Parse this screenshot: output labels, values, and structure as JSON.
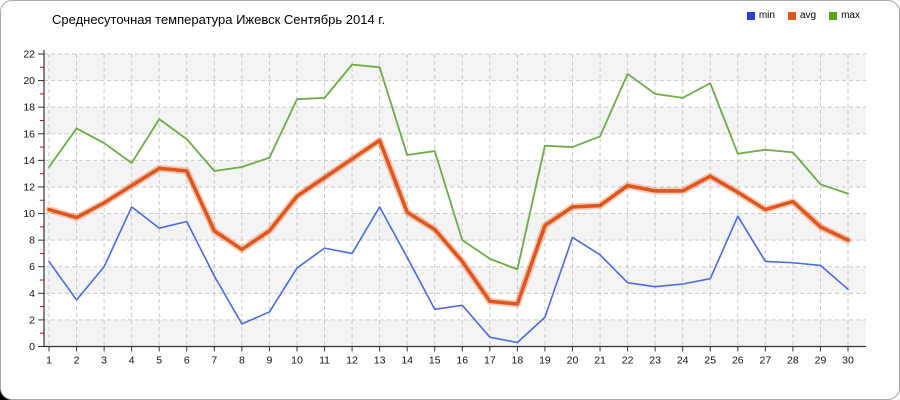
{
  "title": "Среднесуточная температура Ижевск  Сентябрь 2014 г.",
  "colors": {
    "grid": "#c9c9c9",
    "axis": "#333333",
    "minor_tick": "#d40000",
    "band": "#f4f4f4",
    "frame_border": "#a9a9a9",
    "label": "#111111"
  },
  "chart_data": {
    "type": "line",
    "title": "Среднесуточная температура Ижевск  Сентябрь 2014 г.",
    "xlabel": "",
    "ylabel": "",
    "x": [
      1,
      2,
      3,
      4,
      5,
      6,
      7,
      8,
      9,
      10,
      11,
      12,
      13,
      14,
      15,
      16,
      17,
      18,
      19,
      20,
      21,
      22,
      23,
      24,
      25,
      26,
      27,
      28,
      29,
      30
    ],
    "ylim": [
      0,
      22
    ],
    "y_ticks": [
      0,
      2,
      4,
      6,
      8,
      10,
      12,
      14,
      16,
      18,
      20,
      22
    ],
    "grid": "dashed",
    "legend_position": "top-right",
    "series": [
      {
        "name": "min",
        "color": "#4a6bdb",
        "legend_color": "#2c3bd6",
        "width": 1.6,
        "halo": false,
        "values": [
          6.4,
          3.5,
          6.0,
          10.5,
          8.9,
          9.4,
          5.3,
          1.7,
          2.6,
          5.9,
          7.4,
          7.0,
          10.5,
          6.7,
          2.8,
          3.1,
          0.7,
          0.3,
          2.2,
          8.2,
          6.9,
          4.8,
          4.5,
          4.7,
          5.1,
          9.8,
          6.4,
          6.3,
          6.1,
          4.3
        ]
      },
      {
        "name": "avg",
        "color": "#e0571e",
        "legend_color": "#e2571f",
        "width": 3.6,
        "halo": true,
        "values": [
          10.3,
          9.7,
          10.8,
          12.1,
          13.4,
          13.2,
          8.7,
          7.3,
          8.7,
          11.3,
          12.7,
          14.1,
          15.5,
          10.1,
          8.8,
          6.4,
          3.4,
          3.2,
          9.1,
          10.5,
          10.6,
          12.1,
          11.7,
          11.7,
          12.8,
          11.6,
          10.3,
          10.9,
          9.0,
          8.0
        ]
      },
      {
        "name": "max",
        "color": "#6cab47",
        "legend_color": "#55a21b",
        "width": 1.8,
        "halo": false,
        "values": [
          13.5,
          16.4,
          15.3,
          13.8,
          17.1,
          15.6,
          13.2,
          13.5,
          14.2,
          18.6,
          18.7,
          21.2,
          21.0,
          14.4,
          14.7,
          8.0,
          6.6,
          5.8,
          15.1,
          15.0,
          15.8,
          20.5,
          19.0,
          18.7,
          19.8,
          14.5,
          14.8,
          14.6,
          12.2,
          11.5
        ]
      }
    ]
  }
}
